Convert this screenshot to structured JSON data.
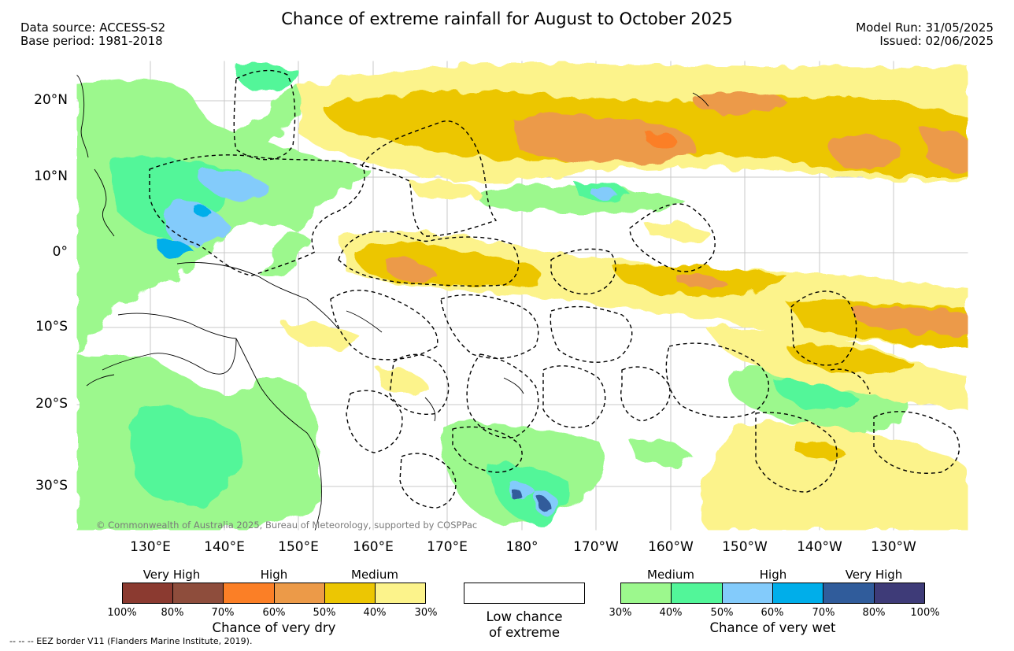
{
  "header": {
    "title": "Chance of extreme rainfall for August to October 2025",
    "data_source": "Data source: ACCESS-S2",
    "base_period": "Base period: 1981-2018",
    "model_run": "Model Run: 31/05/2025",
    "issued": "Issued: 02/06/2025"
  },
  "map": {
    "lat_labels": [
      "20°N",
      "10°N",
      "0°",
      "10°S",
      "20°S",
      "30°S"
    ],
    "lon_labels": [
      "130°E",
      "140°E",
      "150°E",
      "160°E",
      "170°E",
      "180°",
      "170°W",
      "160°W",
      "150°W",
      "140°W",
      "130°W"
    ],
    "credit": "© Commonwealth of Australia 2025, Bureau of Meteorology, supported by COSPPac",
    "ocean_color": "#ffffff",
    "grid_color": "#bdbdbd"
  },
  "legend_dry": {
    "title": "Chance of very dry",
    "categories": [
      "Very High",
      "High",
      "Medium"
    ],
    "ticks": [
      "100%",
      "80%",
      "70%",
      "60%",
      "50%",
      "40%",
      "30%"
    ],
    "colors": [
      "#8b3a30",
      "#8e4d3c",
      "#fb7f26",
      "#ec9a48",
      "#ecc603",
      "#fcf38b"
    ]
  },
  "legend_low": {
    "label_line1": "Low chance",
    "label_line2": "of extreme",
    "color": "#ffffff"
  },
  "legend_wet": {
    "title": "Chance of very wet",
    "categories": [
      "Medium",
      "High",
      "Very High"
    ],
    "ticks": [
      "30%",
      "40%",
      "50%",
      "60%",
      "70%",
      "80%",
      "100%"
    ],
    "colors": [
      "#9cf88d",
      "#52f699",
      "#83cbfb",
      "#00aeea",
      "#305c9b",
      "#3e3b78"
    ]
  },
  "footer": {
    "eez_note": "--  --  -- EEZ border V11 (Flanders Marine Institute, 2019)."
  }
}
